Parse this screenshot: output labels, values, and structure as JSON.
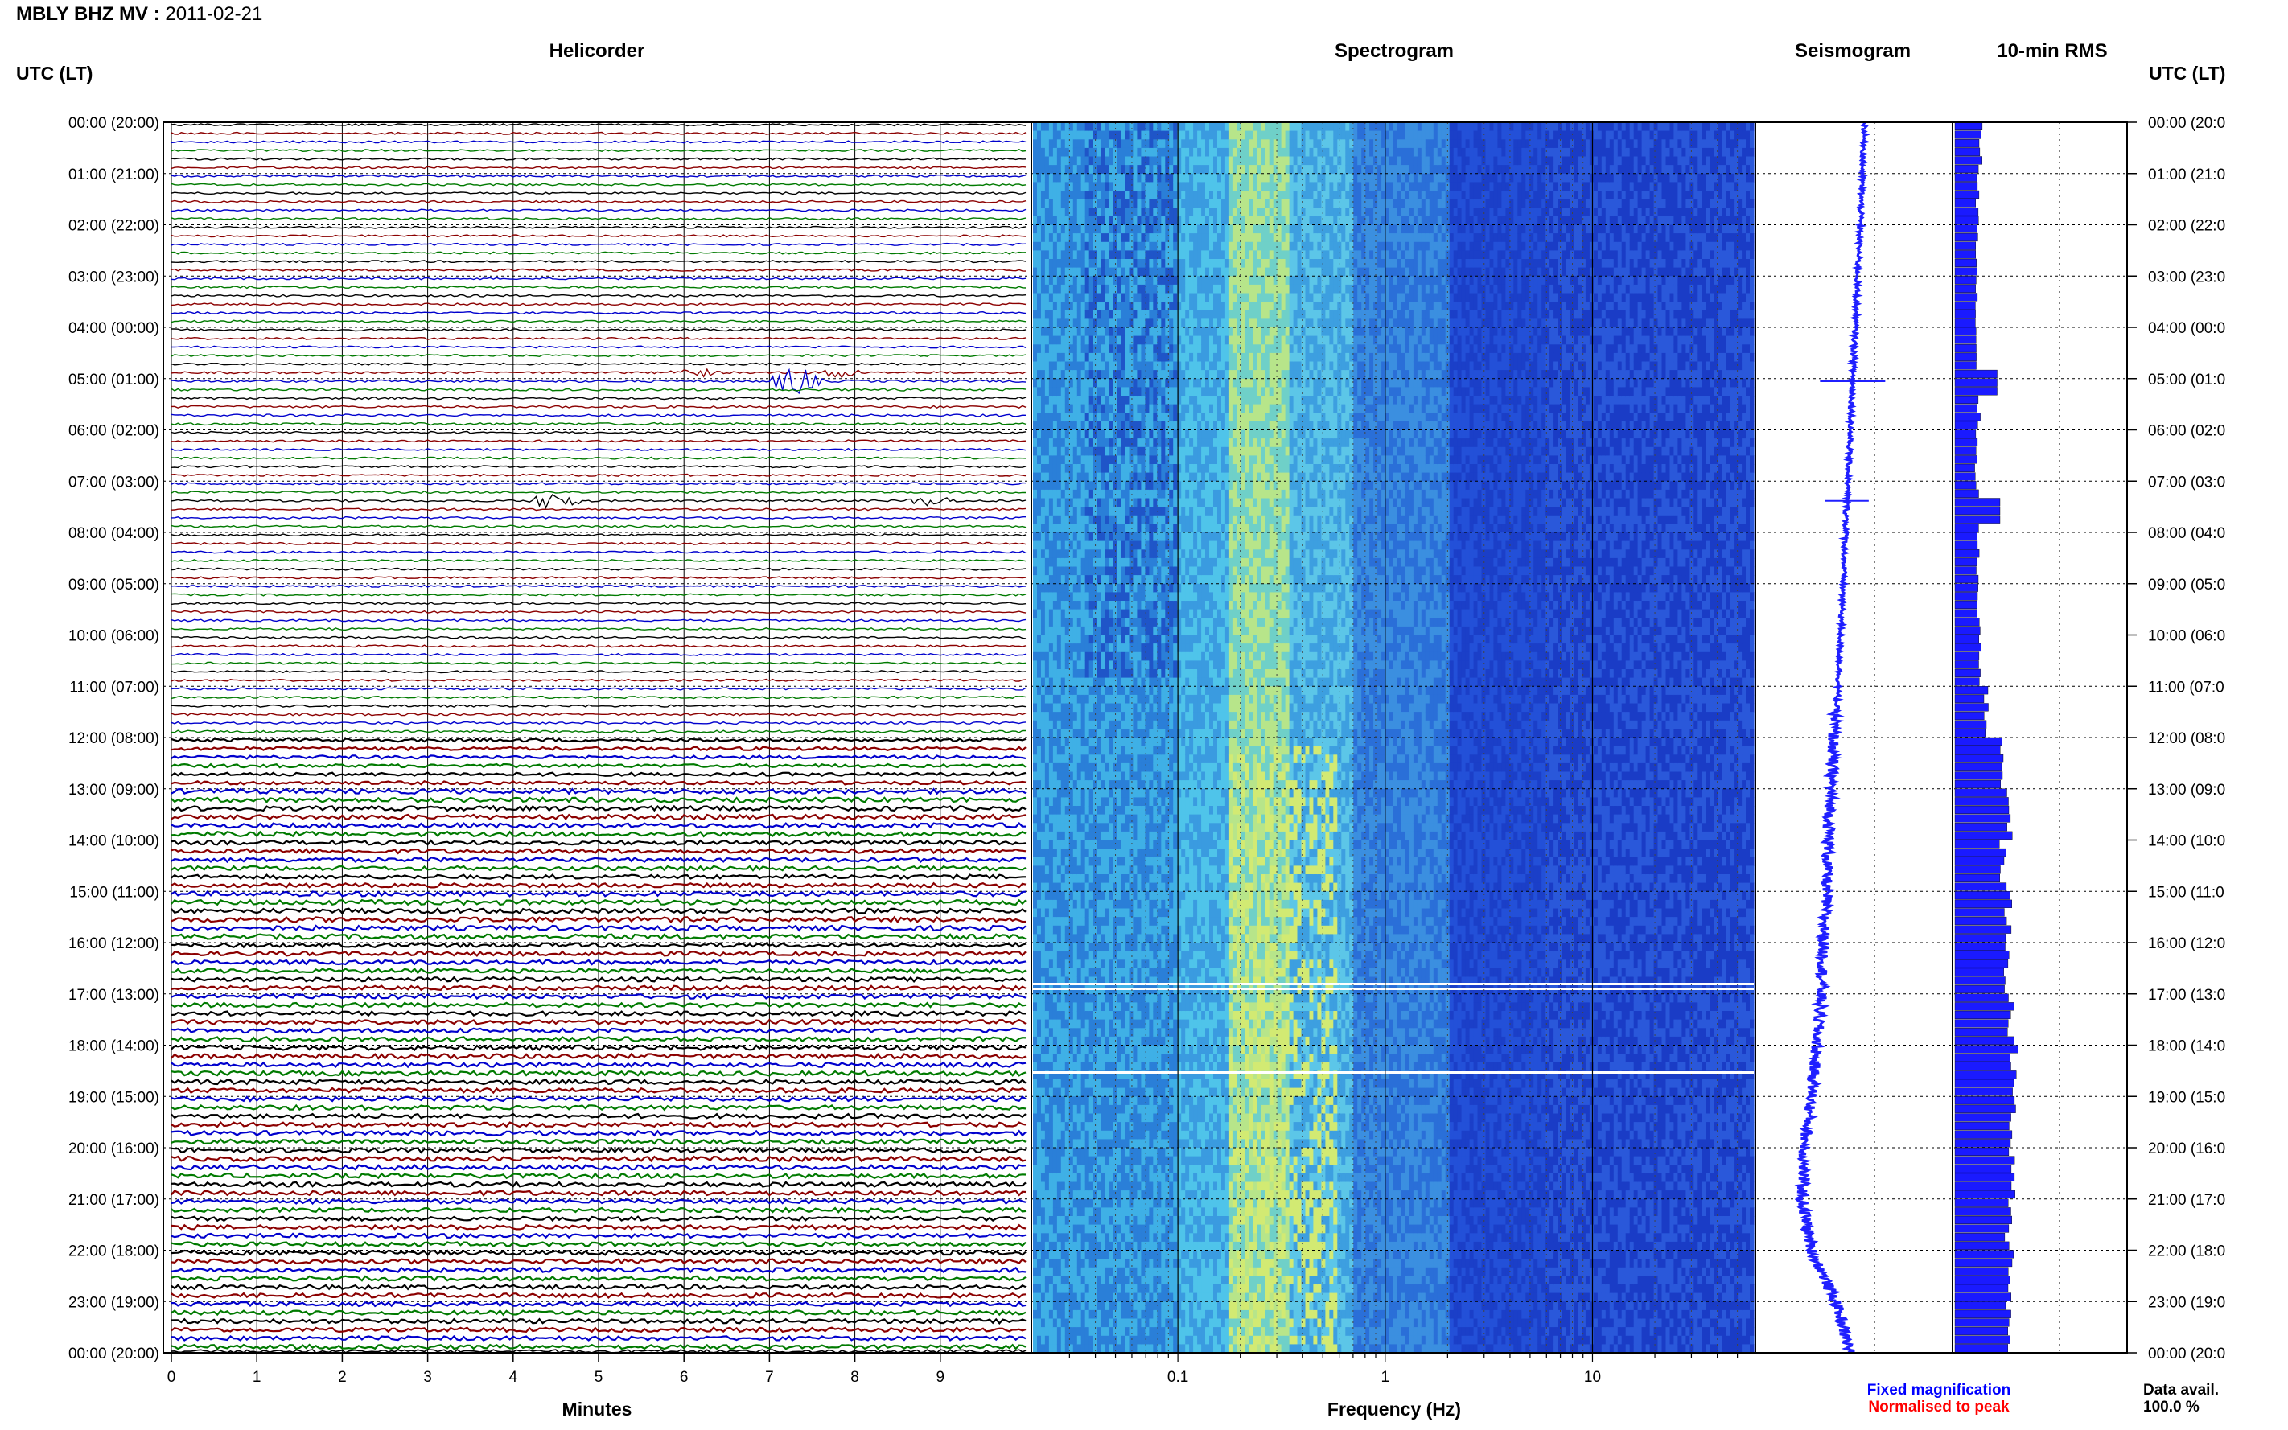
{
  "header": {
    "station": "MBLY BHZ MV",
    "date": "2011-02-21",
    "utc_lt_label": "UTC (LT)"
  },
  "panels": {
    "helicorder": "Helicorder",
    "spectrogram": "Spectrogram",
    "seismogram": "Seismogram",
    "rms": "10-min RMS"
  },
  "time_labels": [
    "00:00 (20:00)",
    "01:00 (21:00)",
    "02:00 (22:00)",
    "03:00 (23:00)",
    "04:00 (00:00)",
    "05:00 (01:00)",
    "06:00 (02:00)",
    "07:00 (03:00)",
    "08:00 (04:00)",
    "09:00 (05:00)",
    "10:00 (06:00)",
    "11:00 (07:00)",
    "12:00 (08:00)",
    "13:00 (09:00)",
    "14:00 (10:00)",
    "15:00 (11:00)",
    "16:00 (12:00)",
    "17:00 (13:00)",
    "18:00 (14:00)",
    "19:00 (15:00)",
    "20:00 (16:00)",
    "21:00 (17:00)",
    "22:00 (18:00)",
    "23:00 (19:00)",
    "00:00 (20:00)"
  ],
  "time_labels_right": [
    "00:00 (20:0",
    "01:00 (21:0",
    "02:00 (22:0",
    "03:00 (23:0",
    "04:00 (00:0",
    "05:00 (01:0",
    "06:00 (02:0",
    "07:00 (03:0",
    "08:00 (04:0",
    "09:00 (05:0",
    "10:00 (06:0",
    "11:00 (07:0",
    "12:00 (08:0",
    "13:00 (09:0",
    "14:00 (10:0",
    "15:00 (11:0",
    "16:00 (12:0",
    "17:00 (13:0",
    "18:00 (14:0",
    "19:00 (15:0",
    "20:00 (16:0",
    "21:00 (17:0",
    "22:00 (18:0",
    "23:00 (19:0",
    "00:00 (20:0"
  ],
  "legend": {
    "fixed": "Fixed magnification",
    "normalised": "Normalised to peak",
    "fixed_color": "#0000ff",
    "normalised_color": "#ff0000"
  },
  "data_avail": {
    "label": "Data avail.",
    "value": "100.0 %"
  },
  "colors": {
    "helicorder_traces": [
      "#000000",
      "#8b0000",
      "#0000cd",
      "#007a00"
    ],
    "seismogram": "#1f1fff",
    "rms": "#1a1aff",
    "spectrogram_low": "#0a1f9e",
    "spectrogram_high": "#cfe86b"
  },
  "chart_data": [
    {
      "type": "line",
      "xlabel": "Minutes",
      "xticks": [
        "0",
        "1",
        "2",
        "3",
        "4",
        "5",
        "6",
        "7",
        "8",
        "9"
      ],
      "xlim": [
        0,
        10
      ],
      "hours": 24,
      "traces_per_hour": 6,
      "amplitude_by_hour": [
        1.0,
        1.0,
        1.0,
        1.0,
        1.0,
        1.1,
        1.0,
        1.0,
        1.0,
        1.0,
        1.0,
        1.1,
        1.6,
        2.2,
        2.0,
        2.3,
        2.0,
        2.1,
        2.2,
        2.1,
        2.2,
        2.0,
        2.1,
        2.0
      ],
      "events": [
        {
          "hour": 4,
          "trace": 5,
          "minute": 6.1,
          "amplitude": 3
        },
        {
          "hour": 4,
          "trace": 5,
          "minute": 7.8,
          "amplitude": 3
        },
        {
          "hour": 5,
          "trace": 0,
          "minute": 7.3,
          "amplitude": 9
        },
        {
          "hour": 7,
          "trace": 2,
          "minute": 4.5,
          "amplitude": 6
        },
        {
          "hour": 7,
          "trace": 2,
          "minute": 8.9,
          "amplitude": 3
        }
      ]
    },
    {
      "type": "heatmap",
      "xlabel": "Frequency (Hz)",
      "xscale": "log",
      "xticks": [
        "0.1",
        "1",
        "10"
      ],
      "xlim": [
        0.02,
        60
      ],
      "hours": 24
    },
    {
      "type": "line",
      "title": "Seismogram",
      "hours": 24,
      "x": [
        0,
        1,
        2,
        3,
        4,
        5,
        6,
        7,
        8,
        9,
        10,
        11,
        12,
        13,
        14,
        15,
        16,
        17,
        18,
        19,
        20,
        21,
        22,
        23,
        24
      ],
      "y": [
        0.0,
        -0.05,
        -0.1,
        -0.15,
        -0.2,
        -0.25,
        -0.3,
        -0.35,
        -0.4,
        -0.45,
        -0.5,
        -0.55,
        -0.65,
        -0.7,
        -0.75,
        -0.8,
        -0.85,
        -0.9,
        -1.0,
        -1.1,
        -1.25,
        -1.3,
        -1.1,
        -0.6,
        -0.3
      ]
    },
    {
      "type": "bar",
      "title": "10-min RMS",
      "hours": 24,
      "hourly_values": [
        0.45,
        0.4,
        0.4,
        0.38,
        0.38,
        0.42,
        0.38,
        0.4,
        0.4,
        0.42,
        0.45,
        0.55,
        0.85,
        0.95,
        0.85,
        0.95,
        0.9,
        1.0,
        1.05,
        1.0,
        1.0,
        0.95,
        1.0,
        0.95
      ],
      "spikes": [
        {
          "hour": 5.0,
          "value": 0.75
        },
        {
          "hour": 7.5,
          "value": 0.8
        }
      ]
    }
  ]
}
